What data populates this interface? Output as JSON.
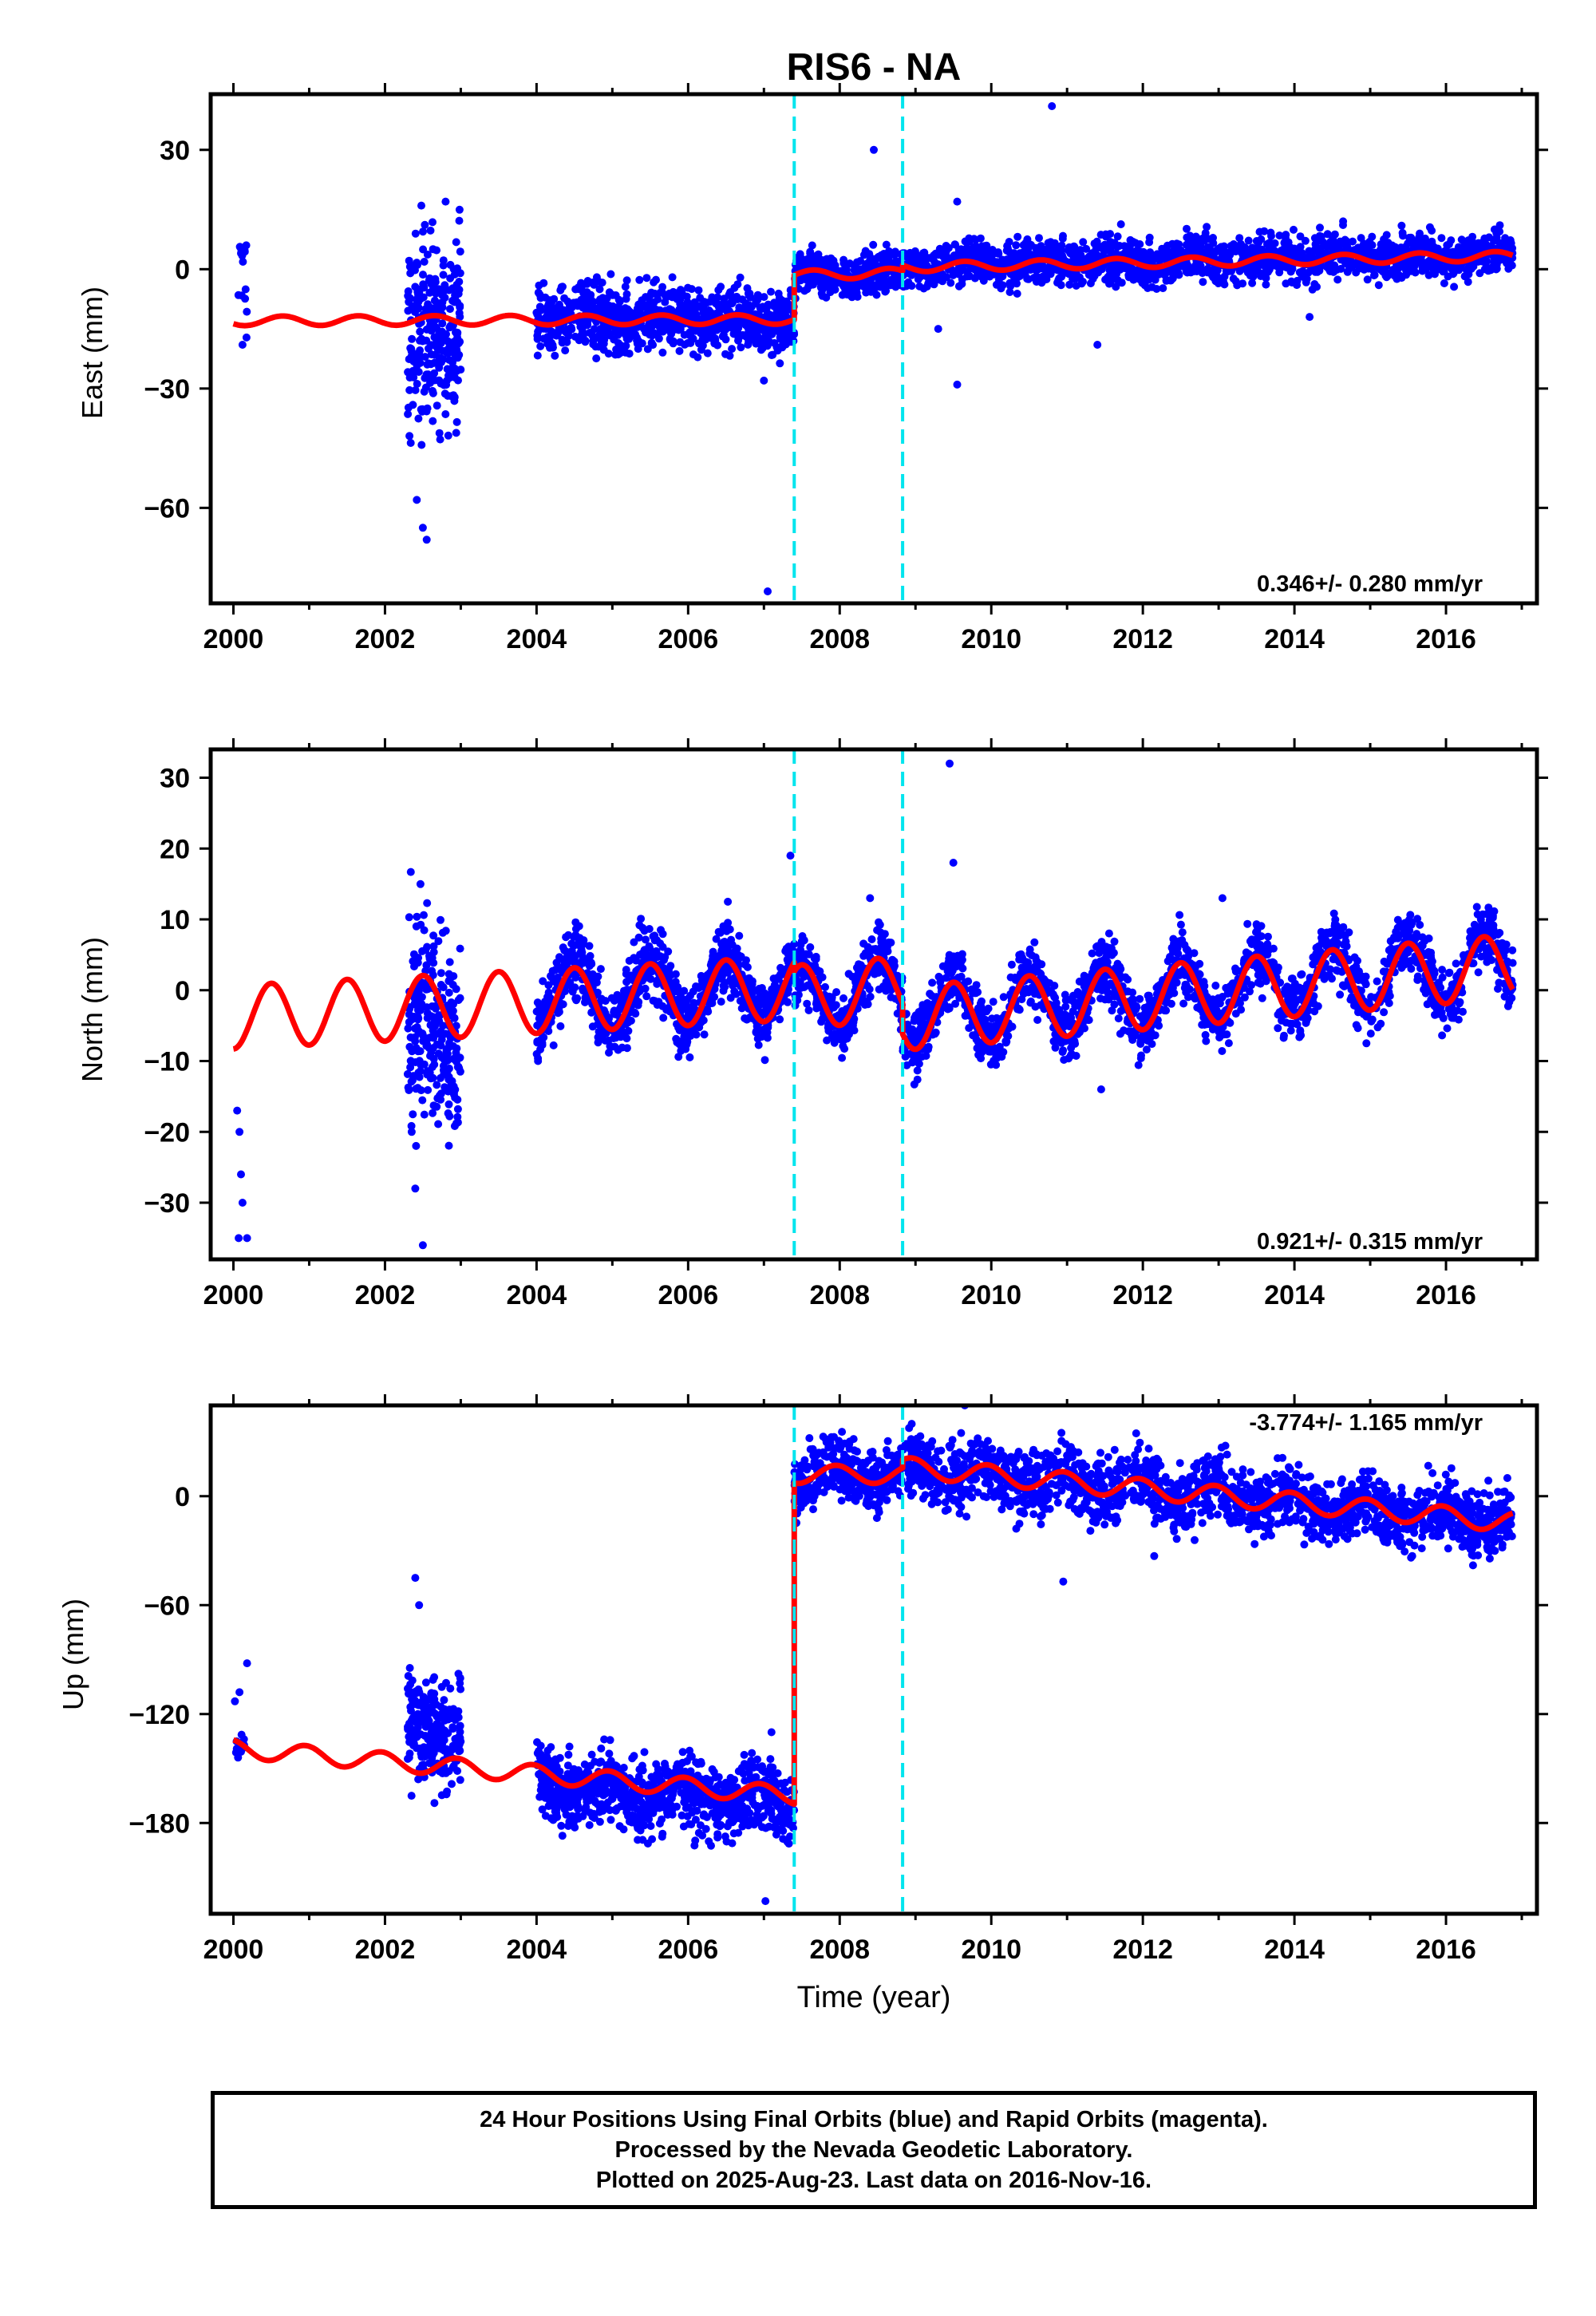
{
  "page": {
    "title": "RIS6 - NA",
    "xlabel": "Time (year)",
    "footer": [
      "24 Hour Positions Using Final Orbits (blue) and Rapid Orbits (magenta).",
      "Processed by the Nevada Geodetic Laboratory.",
      "Plotted on 2025-Aug-23. Last data on 2016-Nov-16."
    ]
  },
  "colors": {
    "points": "#0000ff",
    "model": "#ff0000",
    "breaks": "#00e5ee",
    "frame": "#000000"
  },
  "chart_data": [
    {
      "type": "scatter",
      "component": "east",
      "ylabel": "East (mm)",
      "rate_label": "0.346+/- 0.280 mm/yr",
      "xlim": [
        1999.7,
        2017.2
      ],
      "ylim": [
        -84,
        44
      ],
      "xticks": [
        2000,
        2002,
        2004,
        2006,
        2008,
        2010,
        2012,
        2014,
        2016
      ],
      "yticks": [
        30,
        0,
        -30,
        -60
      ],
      "breaks": [
        2007.4,
        2008.83
      ],
      "series": [
        {
          "kind": "points",
          "segments": [
            {
              "x0": 2000.05,
              "x1": 2000.2,
              "offset": -5,
              "slope": 0,
              "amp": 1.5,
              "phase": 0,
              "noise": 8,
              "n": 12
            },
            {
              "x0": 2002.3,
              "x1": 2003.0,
              "offset": -18,
              "slope": 8,
              "amp": 1.5,
              "phase": 0,
              "noise": 12,
              "n": 260
            },
            {
              "x0": 2004.0,
              "x1": 2007.4,
              "offset": -12.5,
              "slope": 0,
              "amp": 1.0,
              "phase": 0.4,
              "noise": 4,
              "n": 900
            },
            {
              "x0": 2007.4,
              "x1": 2008.83,
              "offset": -1.5,
              "slope": 0.4,
              "amp": 1.0,
              "phase": 0.4,
              "noise": 2.5,
              "n": 360
            },
            {
              "x0": 2008.83,
              "x1": 2016.88,
              "offset": 1.0,
              "slope": 0.34,
              "amp": 1.0,
              "phase": 0.4,
              "noise": 2.8,
              "n": 1700
            }
          ],
          "outliers": [
            [
              2000.1,
              4
            ],
            [
              2000.17,
              6
            ],
            [
              2000.12,
              -19
            ],
            [
              2002.42,
              -58
            ],
            [
              2002.5,
              -65
            ],
            [
              2002.55,
              -68
            ],
            [
              2002.48,
              16
            ],
            [
              2002.8,
              17
            ],
            [
              2007.05,
              -81
            ],
            [
              2007.0,
              -28
            ],
            [
              2008.45,
              30
            ],
            [
              2010.8,
              41
            ],
            [
              2011.4,
              -19
            ],
            [
              2009.55,
              17
            ],
            [
              2009.3,
              -15
            ],
            [
              2009.55,
              -29
            ],
            [
              2014.2,
              -12
            ]
          ]
        },
        {
          "kind": "model",
          "segments": [
            {
              "x0": 2000.0,
              "x1": 2007.4,
              "offset": -13,
              "slope": 0.05,
              "amp": 1.2,
              "phase": 0.4
            },
            {
              "x0": 2007.4,
              "x1": 2008.83,
              "offset": -1.5,
              "slope": 0.4,
              "amp": 1.2,
              "phase": 0.4
            },
            {
              "x0": 2008.83,
              "x1": 2016.88,
              "offset": 0.5,
              "slope": 0.35,
              "amp": 1.2,
              "phase": 0.4
            }
          ]
        }
      ]
    },
    {
      "type": "scatter",
      "component": "north",
      "ylabel": "North (mm)",
      "rate_label": "0.921+/- 0.315 mm/yr",
      "xlim": [
        1999.7,
        2017.2
      ],
      "ylim": [
        -38,
        34
      ],
      "xticks": [
        2000,
        2002,
        2004,
        2006,
        2008,
        2010,
        2012,
        2014,
        2016
      ],
      "yticks": [
        30,
        20,
        10,
        0,
        -10,
        -20,
        -30
      ],
      "breaks": [
        2007.4,
        2008.83
      ],
      "series": [
        {
          "kind": "points",
          "segments": [
            {
              "x0": 2002.3,
              "x1": 2003.0,
              "offset": -6,
              "slope": 0,
              "amp": 4,
              "phase": 0.25,
              "noise": 7,
              "n": 260
            },
            {
              "x0": 2004.0,
              "x1": 2007.4,
              "offset": -1.0,
              "slope": 0.55,
              "amp": 4.5,
              "phase": 0.25,
              "noise": 2.5,
              "n": 900
            },
            {
              "x0": 2007.4,
              "x1": 2008.83,
              "offset": -1.0,
              "slope": 0.9,
              "amp": 4.5,
              "phase": 0.25,
              "noise": 2.2,
              "n": 360
            },
            {
              "x0": 2008.83,
              "x1": 2016.88,
              "offset": -3.5,
              "slope": 0.92,
              "amp": 4.5,
              "phase": 0.25,
              "noise": 2.3,
              "n": 1700
            }
          ],
          "outliers": [
            [
              2000.05,
              -17
            ],
            [
              2000.08,
              -20
            ],
            [
              2000.1,
              -26
            ],
            [
              2000.12,
              -30
            ],
            [
              2000.07,
              -35
            ],
            [
              2000.18,
              -35
            ],
            [
              2002.5,
              -36
            ],
            [
              2002.4,
              -28
            ],
            [
              2007.35,
              19
            ],
            [
              2009.45,
              32
            ],
            [
              2009.5,
              18
            ],
            [
              2011.45,
              -14
            ],
            [
              2013.05,
              13
            ],
            [
              2008.4,
              13
            ]
          ]
        },
        {
          "kind": "model",
          "segments": [
            {
              "x0": 2000.0,
              "x1": 2007.4,
              "offset": -3.8,
              "slope": 0.55,
              "amp": 4.5,
              "phase": 0.25
            },
            {
              "x0": 2007.4,
              "x1": 2008.83,
              "offset": -1.0,
              "slope": 0.9,
              "amp": 4.5,
              "phase": 0.25
            },
            {
              "x0": 2008.83,
              "x1": 2016.88,
              "offset": -4.0,
              "slope": 0.92,
              "amp": 4.5,
              "phase": 0.25
            }
          ]
        }
      ]
    },
    {
      "type": "scatter",
      "component": "up",
      "ylabel": "Up (mm)",
      "rate_label": "-3.774+/- 1.165 mm/yr",
      "xlim": [
        1999.7,
        2017.2
      ],
      "ylim": [
        -230,
        50
      ],
      "xticks": [
        2000,
        2002,
        2004,
        2006,
        2008,
        2010,
        2012,
        2014,
        2016
      ],
      "yticks": [
        0,
        -60,
        -120,
        -180
      ],
      "breaks": [
        2007.4,
        2008.83
      ],
      "series": [
        {
          "kind": "points",
          "segments": [
            {
              "x0": 2000.0,
              "x1": 2000.15,
              "offset": -138,
              "slope": 0,
              "amp": 3,
              "phase": 0,
              "noise": 4,
              "n": 10
            },
            {
              "x0": 2002.3,
              "x1": 2003.0,
              "offset": -128,
              "slope": 0,
              "amp": 5,
              "phase": 0,
              "noise": 14,
              "n": 240
            },
            {
              "x0": 2004.0,
              "x1": 2007.4,
              "offset": -158,
              "slope": -3.5,
              "amp": 5,
              "phase": 0.7,
              "noise": 10,
              "n": 900
            },
            {
              "x0": 2007.4,
              "x1": 2008.83,
              "offset": 12,
              "slope": 0,
              "amp": 5,
              "phase": 0.7,
              "noise": 8,
              "n": 360
            },
            {
              "x0": 2008.83,
              "x1": 2016.88,
              "offset": 16,
              "slope": -3.774,
              "amp": 5.5,
              "phase": 0.7,
              "noise": 9,
              "n": 1700
            }
          ],
          "outliers": [
            [
              2000.02,
              -113
            ],
            [
              2000.08,
              -108
            ],
            [
              2000.18,
              -92
            ],
            [
              2002.4,
              -45
            ],
            [
              2002.45,
              -60
            ],
            [
              2002.35,
              -165
            ],
            [
              2007.02,
              -223
            ],
            [
              2007.1,
              -130
            ],
            [
              2009.65,
              50
            ],
            [
              2010.95,
              -47
            ],
            [
              2012.15,
              -33
            ],
            [
              2007.6,
              32
            ]
          ]
        },
        {
          "kind": "model",
          "segments": [
            {
              "x0": 2000.0,
              "x1": 2007.4,
              "offset": -139,
              "slope": -3.5,
              "amp": 5,
              "phase": 0.7
            },
            {
              "x0": 2007.4,
              "x1": 2008.83,
              "offset": 12,
              "slope": 0,
              "amp": 5,
              "phase": 0.7
            },
            {
              "x0": 2008.83,
              "x1": 2016.88,
              "offset": 16,
              "slope": -3.774,
              "amp": 5.5,
              "phase": 0.7
            }
          ]
        }
      ]
    }
  ]
}
